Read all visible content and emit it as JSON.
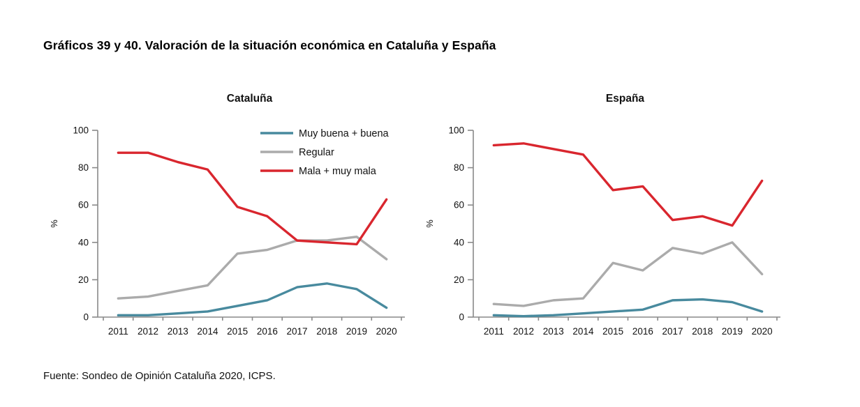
{
  "page": {
    "title": "Gráficos 39 y 40. Valoración de la situación económica en Cataluña y España",
    "source": "Fuente: Sondeo de Opinión Cataluña 2020, ICPS."
  },
  "colors": {
    "buena": "#488A9E",
    "regular": "#ABABAB",
    "mala": "#D9262E",
    "axis": "#898989",
    "text": "#111111"
  },
  "chart_data": [
    {
      "type": "line",
      "title": "Cataluña",
      "ylabel": "%",
      "ylim": [
        0,
        100
      ],
      "yticks": [
        0,
        20,
        40,
        60,
        80,
        100
      ],
      "grid": false,
      "show_legend": true,
      "legend_position": "inside-top-right",
      "categories": [
        "2011",
        "2012",
        "2013",
        "2014",
        "2015",
        "2016",
        "2017",
        "2018",
        "2019",
        "2020"
      ],
      "series": [
        {
          "name": "Muy buena + buena",
          "color": "#488A9E",
          "values": [
            1,
            1,
            2,
            3,
            6,
            9,
            16,
            18,
            15,
            5
          ]
        },
        {
          "name": "Regular",
          "color": "#ABABAB",
          "values": [
            10,
            11,
            14,
            17,
            34,
            36,
            41,
            41,
            43,
            31
          ]
        },
        {
          "name": "Mala + muy mala",
          "color": "#D9262E",
          "values": [
            88,
            88,
            83,
            79,
            59,
            54,
            41,
            40,
            39,
            63
          ]
        }
      ]
    },
    {
      "type": "line",
      "title": "España",
      "ylabel": "%",
      "ylim": [
        0,
        100
      ],
      "yticks": [
        0,
        20,
        40,
        60,
        80,
        100
      ],
      "grid": false,
      "show_legend": false,
      "legend_position": "none",
      "categories": [
        "2011",
        "2012",
        "2013",
        "2014",
        "2015",
        "2016",
        "2017",
        "2018",
        "2019",
        "2020"
      ],
      "series": [
        {
          "name": "Muy buena + buena",
          "color": "#488A9E",
          "values": [
            1,
            0.5,
            1,
            2,
            3,
            4,
            9,
            9.5,
            8,
            3
          ]
        },
        {
          "name": "Regular",
          "color": "#ABABAB",
          "values": [
            7,
            6,
            9,
            10,
            29,
            25,
            37,
            34,
            40,
            23
          ]
        },
        {
          "name": "Mala + muy mala",
          "color": "#D9262E",
          "values": [
            92,
            93,
            90,
            87,
            68,
            70,
            52,
            54,
            49,
            73
          ]
        }
      ]
    }
  ]
}
